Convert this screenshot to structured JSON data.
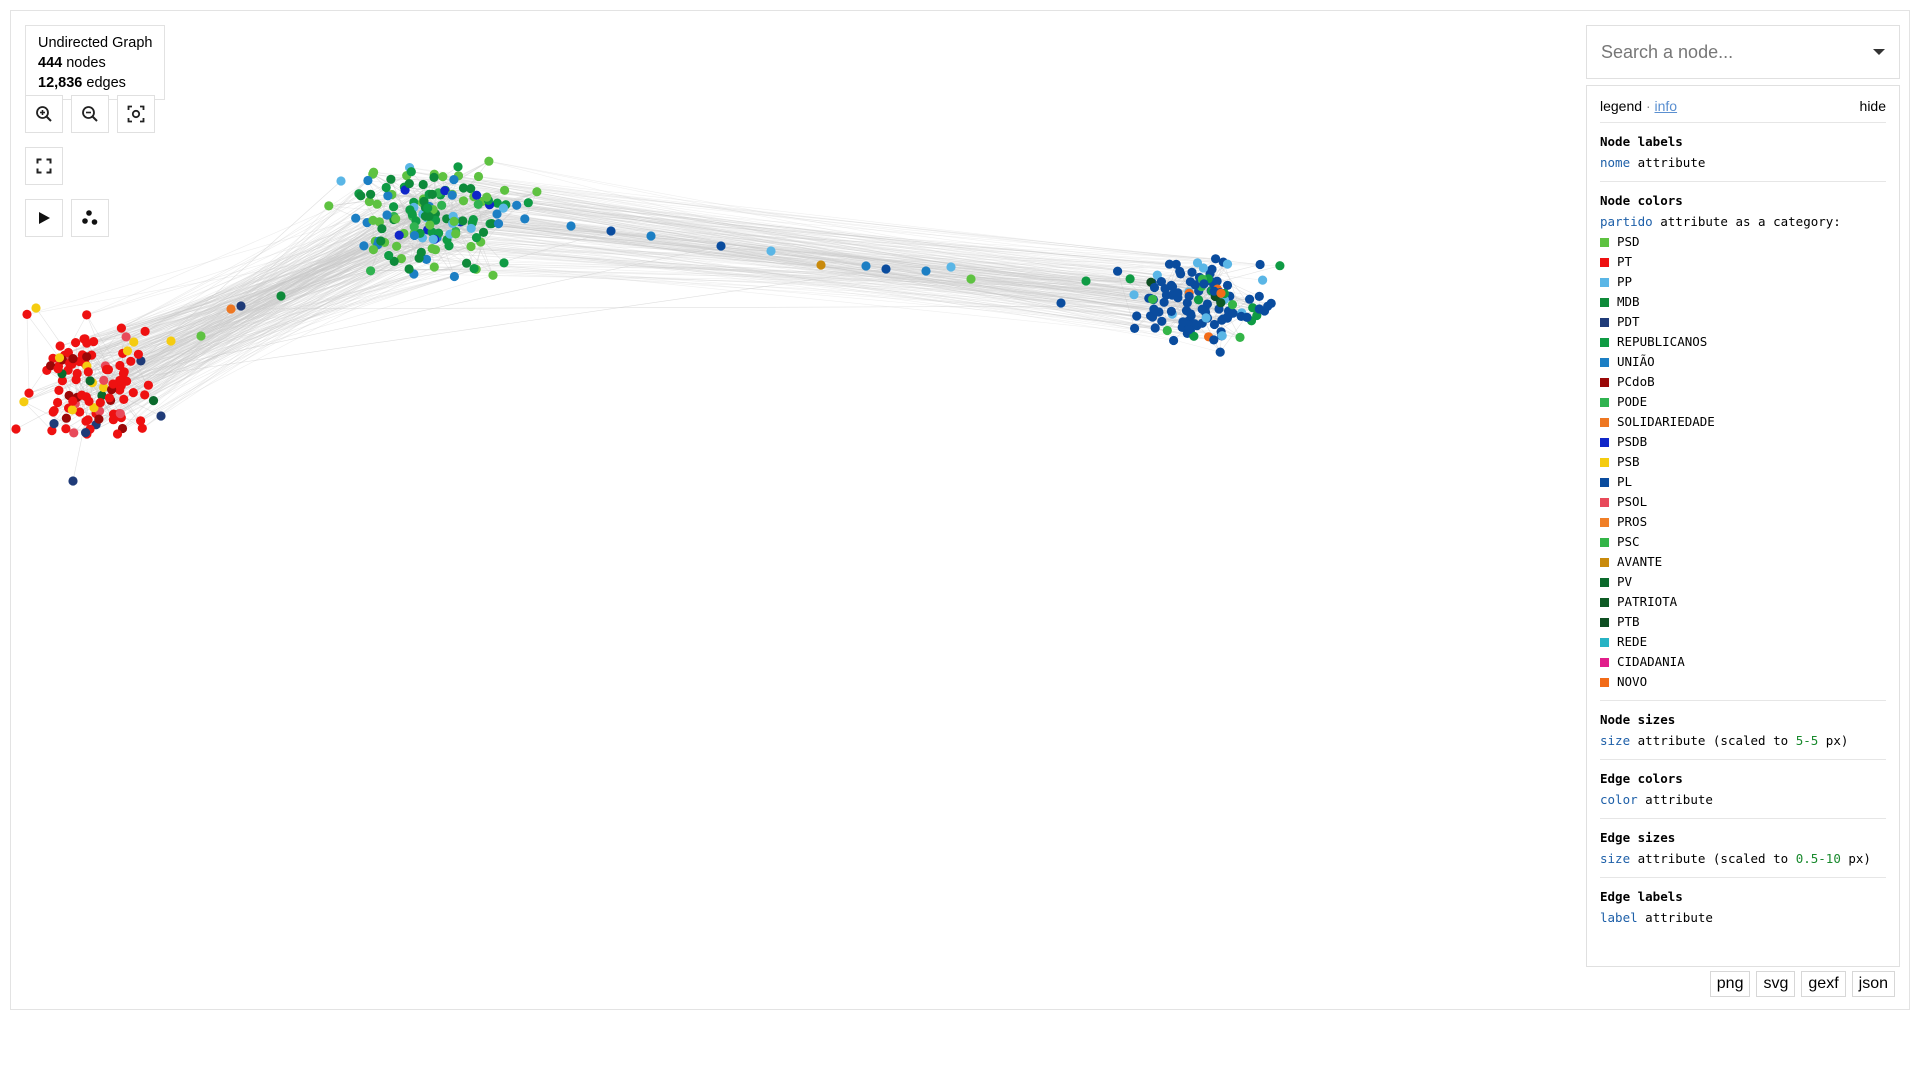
{
  "graph_info": {
    "type_label": "Undirected Graph",
    "nodes_count": "444",
    "nodes_label": "nodes",
    "edges_count": "12,836",
    "edges_label": "edges"
  },
  "search": {
    "placeholder": "Search a node..."
  },
  "legend": {
    "title": "legend",
    "separator": "·",
    "info_link": "info",
    "hide_label": "hide",
    "node_labels": {
      "heading": "Node labels",
      "attr": "nome",
      "text": "attribute"
    },
    "node_colors": {
      "heading": "Node colors",
      "attr": "partido",
      "text": "attribute as a category:",
      "categories": [
        {
          "name": "PSD",
          "color": "#5ec241"
        },
        {
          "name": "PT",
          "color": "#ee1111"
        },
        {
          "name": "PP",
          "color": "#5ab6e6"
        },
        {
          "name": "MDB",
          "color": "#0e8a3a"
        },
        {
          "name": "PDT",
          "color": "#1f3b78"
        },
        {
          "name": "REPUBLICANOS",
          "color": "#0f9b44"
        },
        {
          "name": "UNIÃO",
          "color": "#1c7fc4"
        },
        {
          "name": "PCdoB",
          "color": "#9a0808"
        },
        {
          "name": "PODE",
          "color": "#30b350"
        },
        {
          "name": "SOLIDARIEDADE",
          "color": "#ee7722"
        },
        {
          "name": "PSDB",
          "color": "#1026c8"
        },
        {
          "name": "PSB",
          "color": "#f5cc10"
        },
        {
          "name": "PL",
          "color": "#0a4c9e"
        },
        {
          "name": "PSOL",
          "color": "#e84a5a"
        },
        {
          "name": "PROS",
          "color": "#f07f27"
        },
        {
          "name": "PSC",
          "color": "#34b548"
        },
        {
          "name": "AVANTE",
          "color": "#c98a0c"
        },
        {
          "name": "PV",
          "color": "#0b6a2c"
        },
        {
          "name": "PATRIOTA",
          "color": "#0d5a24"
        },
        {
          "name": "PTB",
          "color": "#0e4e22"
        },
        {
          "name": "REDE",
          "color": "#27b3c4"
        },
        {
          "name": "CIDADANIA",
          "color": "#e11e8a"
        },
        {
          "name": "NOVO",
          "color": "#f26b18"
        }
      ]
    },
    "node_sizes": {
      "heading": "Node sizes",
      "attr": "size",
      "text_a": "attribute (scaled to",
      "range": "5-5",
      "text_b": "px)"
    },
    "edge_colors": {
      "heading": "Edge colors",
      "attr": "color",
      "text": "attribute"
    },
    "edge_sizes": {
      "heading": "Edge sizes",
      "attr": "size",
      "text_a": "attribute (scaled to",
      "range": "0.5-10",
      "text_b": "px)"
    },
    "edge_labels": {
      "heading": "Edge labels",
      "attr": "label",
      "text": "attribute"
    }
  },
  "exports": {
    "png": "png",
    "svg": "svg",
    "gexf": "gexf",
    "json": "json"
  }
}
